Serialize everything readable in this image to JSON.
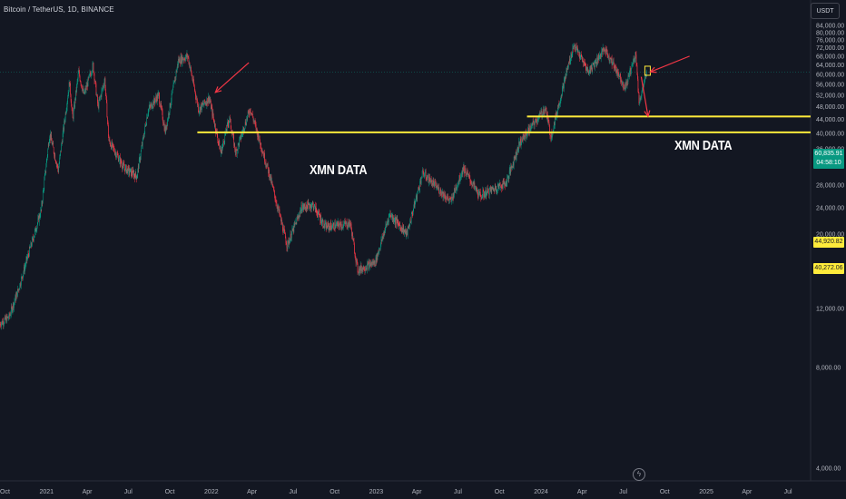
{
  "header": {
    "symbol_title": "Bitcoin / TetherUS, 1D, BINANCE",
    "currency_button": "USDT"
  },
  "annotations": [
    {
      "text": "XMN DATA"
    },
    {
      "text": "XMN DATA"
    }
  ],
  "price_tags": {
    "last_price": "60,835.91",
    "countdown": "04:58:10",
    "upper_level": "44,920.82",
    "lower_level": "40,272.06"
  },
  "colors": {
    "background": "#131722",
    "up_candle": "#089981",
    "down_candle": "#f23645",
    "level_line": "#ffeb3b",
    "arrow": "#f23645"
  },
  "chart_data": {
    "type": "candlestick",
    "y_axis": {
      "scale": "log",
      "range": [
        4000,
        88000
      ],
      "ticks": [
        "84,000.00",
        "80,000.00",
        "76,000.00",
        "72,000.00",
        "68,000.00",
        "64,000.00",
        "60,000.00",
        "56,000.00",
        "52,000.00",
        "48,000.00",
        "44,000.00",
        "40,000.00",
        "36,000.00",
        "32,000.00",
        "28,000.00",
        "24,000.00",
        "20,000.00",
        "16,000.00",
        "12,000.00",
        "8,000.00",
        "4,000.00"
      ],
      "tick_values": [
        84000,
        80000,
        76000,
        72000,
        68000,
        64000,
        60000,
        56000,
        52000,
        48000,
        44000,
        40000,
        36000,
        32000,
        28000,
        24000,
        20000,
        16000,
        12000,
        8000,
        4000
      ]
    },
    "x_axis": {
      "range": [
        "2020-09-20",
        "2025-08-20"
      ],
      "labels": [
        "Oct",
        "2021",
        "Apr",
        "Jul",
        "Oct",
        "2022",
        "Apr",
        "Jul",
        "Oct",
        "2023",
        "Apr",
        "Jul",
        "Oct",
        "2024",
        "Apr",
        "Jul",
        "Oct",
        "2025",
        "Apr",
        "Jul"
      ],
      "label_dates": [
        "2020-10-01",
        "2021-01-01",
        "2021-04-01",
        "2021-07-01",
        "2021-10-01",
        "2022-01-01",
        "2022-04-01",
        "2022-07-01",
        "2022-10-01",
        "2023-01-01",
        "2023-04-01",
        "2023-07-01",
        "2023-10-01",
        "2024-01-01",
        "2024-04-01",
        "2024-07-01",
        "2024-10-01",
        "2025-01-01",
        "2025-04-01",
        "2025-07-01"
      ]
    },
    "price_path": [
      [
        "2020-09-20",
        10800
      ],
      [
        "2020-10-10",
        11300
      ],
      [
        "2020-10-31",
        13700
      ],
      [
        "2020-11-25",
        18000
      ],
      [
        "2020-12-20",
        23500
      ],
      [
        "2021-01-08",
        40000
      ],
      [
        "2021-01-27",
        31000
      ],
      [
        "2021-02-21",
        57000
      ],
      [
        "2021-02-28",
        44000
      ],
      [
        "2021-03-13",
        61000
      ],
      [
        "2021-03-25",
        52000
      ],
      [
        "2021-04-14",
        64000
      ],
      [
        "2021-04-25",
        48000
      ],
      [
        "2021-05-10",
        58000
      ],
      [
        "2021-05-19",
        38000
      ],
      [
        "2021-06-22",
        31500
      ],
      [
        "2021-07-20",
        29800
      ],
      [
        "2021-08-14",
        47000
      ],
      [
        "2021-09-06",
        52000
      ],
      [
        "2021-09-21",
        40500
      ],
      [
        "2021-10-20",
        66000
      ],
      [
        "2021-11-10",
        68000
      ],
      [
        "2021-12-04",
        47000
      ],
      [
        "2021-12-27",
        51000
      ],
      [
        "2022-01-22",
        35000
      ],
      [
        "2022-02-10",
        44500
      ],
      [
        "2022-02-24",
        35000
      ],
      [
        "2022-03-28",
        47500
      ],
      [
        "2022-05-10",
        30000
      ],
      [
        "2022-06-18",
        18500
      ],
      [
        "2022-07-20",
        24000
      ],
      [
        "2022-08-14",
        24500
      ],
      [
        "2022-09-10",
        21000
      ],
      [
        "2022-11-05",
        21500
      ],
      [
        "2022-11-21",
        15600
      ],
      [
        "2022-12-30",
        16500
      ],
      [
        "2023-01-31",
        23000
      ],
      [
        "2023-03-10",
        20000
      ],
      [
        "2023-04-14",
        30500
      ],
      [
        "2023-06-15",
        25000
      ],
      [
        "2023-07-13",
        31500
      ],
      [
        "2023-08-18",
        26000
      ],
      [
        "2023-10-16",
        28500
      ],
      [
        "2023-11-15",
        37500
      ],
      [
        "2023-12-20",
        43500
      ],
      [
        "2024-01-11",
        47500
      ],
      [
        "2024-01-23",
        39000
      ],
      [
        "2024-02-28",
        62000
      ],
      [
        "2024-03-14",
        73500
      ],
      [
        "2024-04-15",
        61000
      ],
      [
        "2024-05-21",
        71500
      ],
      [
        "2024-06-24",
        59000
      ],
      [
        "2024-07-05",
        54500
      ],
      [
        "2024-07-29",
        69500
      ],
      [
        "2024-08-05",
        49500
      ],
      [
        "2024-08-23",
        60800
      ]
    ],
    "last_price": 60835.91,
    "horizontal_levels": [
      {
        "value": 44920.82,
        "from": "2023-12-01"
      },
      {
        "value": 40272.06,
        "from": "2021-12-01"
      }
    ],
    "arrows": [
      {
        "from": [
          "2022-03-25",
          65000
        ],
        "to": [
          "2022-01-10",
          53000
        ]
      },
      {
        "from": [
          "2024-11-25",
          68000
        ],
        "to": [
          "2024-08-30",
          61000
        ]
      },
      {
        "from": [
          "2024-08-10",
          59000
        ],
        "to": [
          "2024-08-25",
          44920.82
        ]
      }
    ],
    "marker_box": {
      "date": "2024-08-23",
      "value": 61500
    }
  }
}
